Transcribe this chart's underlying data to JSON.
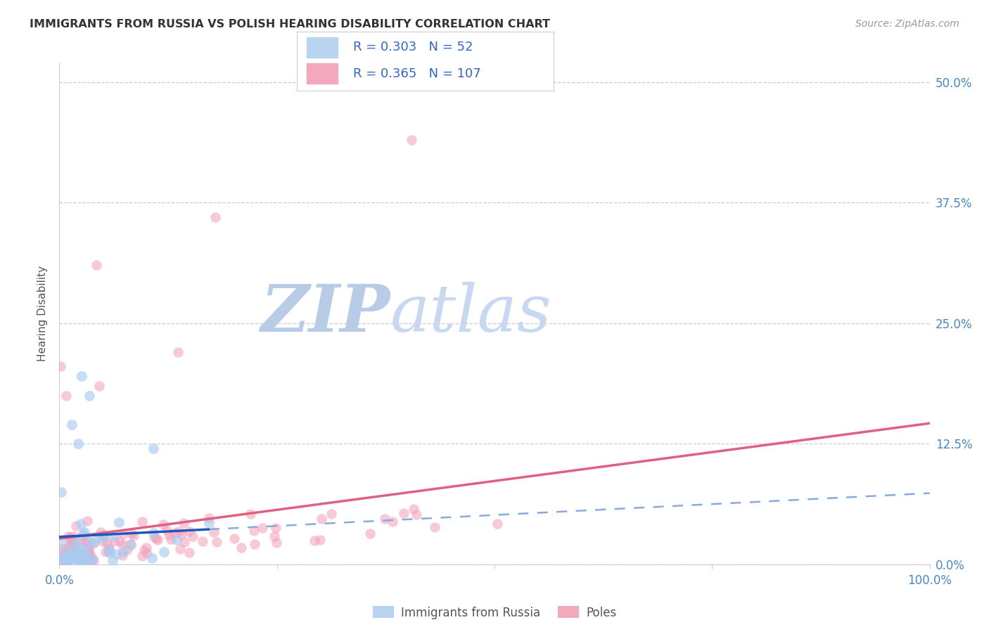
{
  "title": "IMMIGRANTS FROM RUSSIA VS POLISH HEARING DISABILITY CORRELATION CHART",
  "source": "Source: ZipAtlas.com",
  "ylabel": "Hearing Disability",
  "color_russia_fill": "#a8ccf0",
  "color_russia_line": "#2255bb",
  "color_russia_dash": "#88aadd",
  "color_poles_fill": "#f4a0b8",
  "color_poles_line": "#e06080",
  "legend_r1": "0.303",
  "legend_n1": "52",
  "legend_r2": "0.365",
  "legend_n2": "107",
  "bg_color": "#ffffff",
  "grid_color": "#cccccc",
  "axis_label_color": "#4488cc",
  "title_color": "#333333",
  "source_color": "#999999",
  "watermark_zip_color": "#b8cce8",
  "watermark_atlas_color": "#c8d8f0",
  "xlim": [
    0.0,
    1.0
  ],
  "ylim": [
    0.0,
    0.52
  ],
  "yticks": [
    0.0,
    0.125,
    0.25,
    0.375,
    0.5
  ],
  "ytick_labels": [
    "0.0%",
    "12.5%",
    "25.0%",
    "37.5%",
    "50.0%"
  ],
  "xticks": [
    0.0,
    0.25,
    0.5,
    0.75,
    1.0
  ],
  "xtick_labels": [
    "0.0%",
    "",
    "",
    "",
    "100.0%"
  ]
}
